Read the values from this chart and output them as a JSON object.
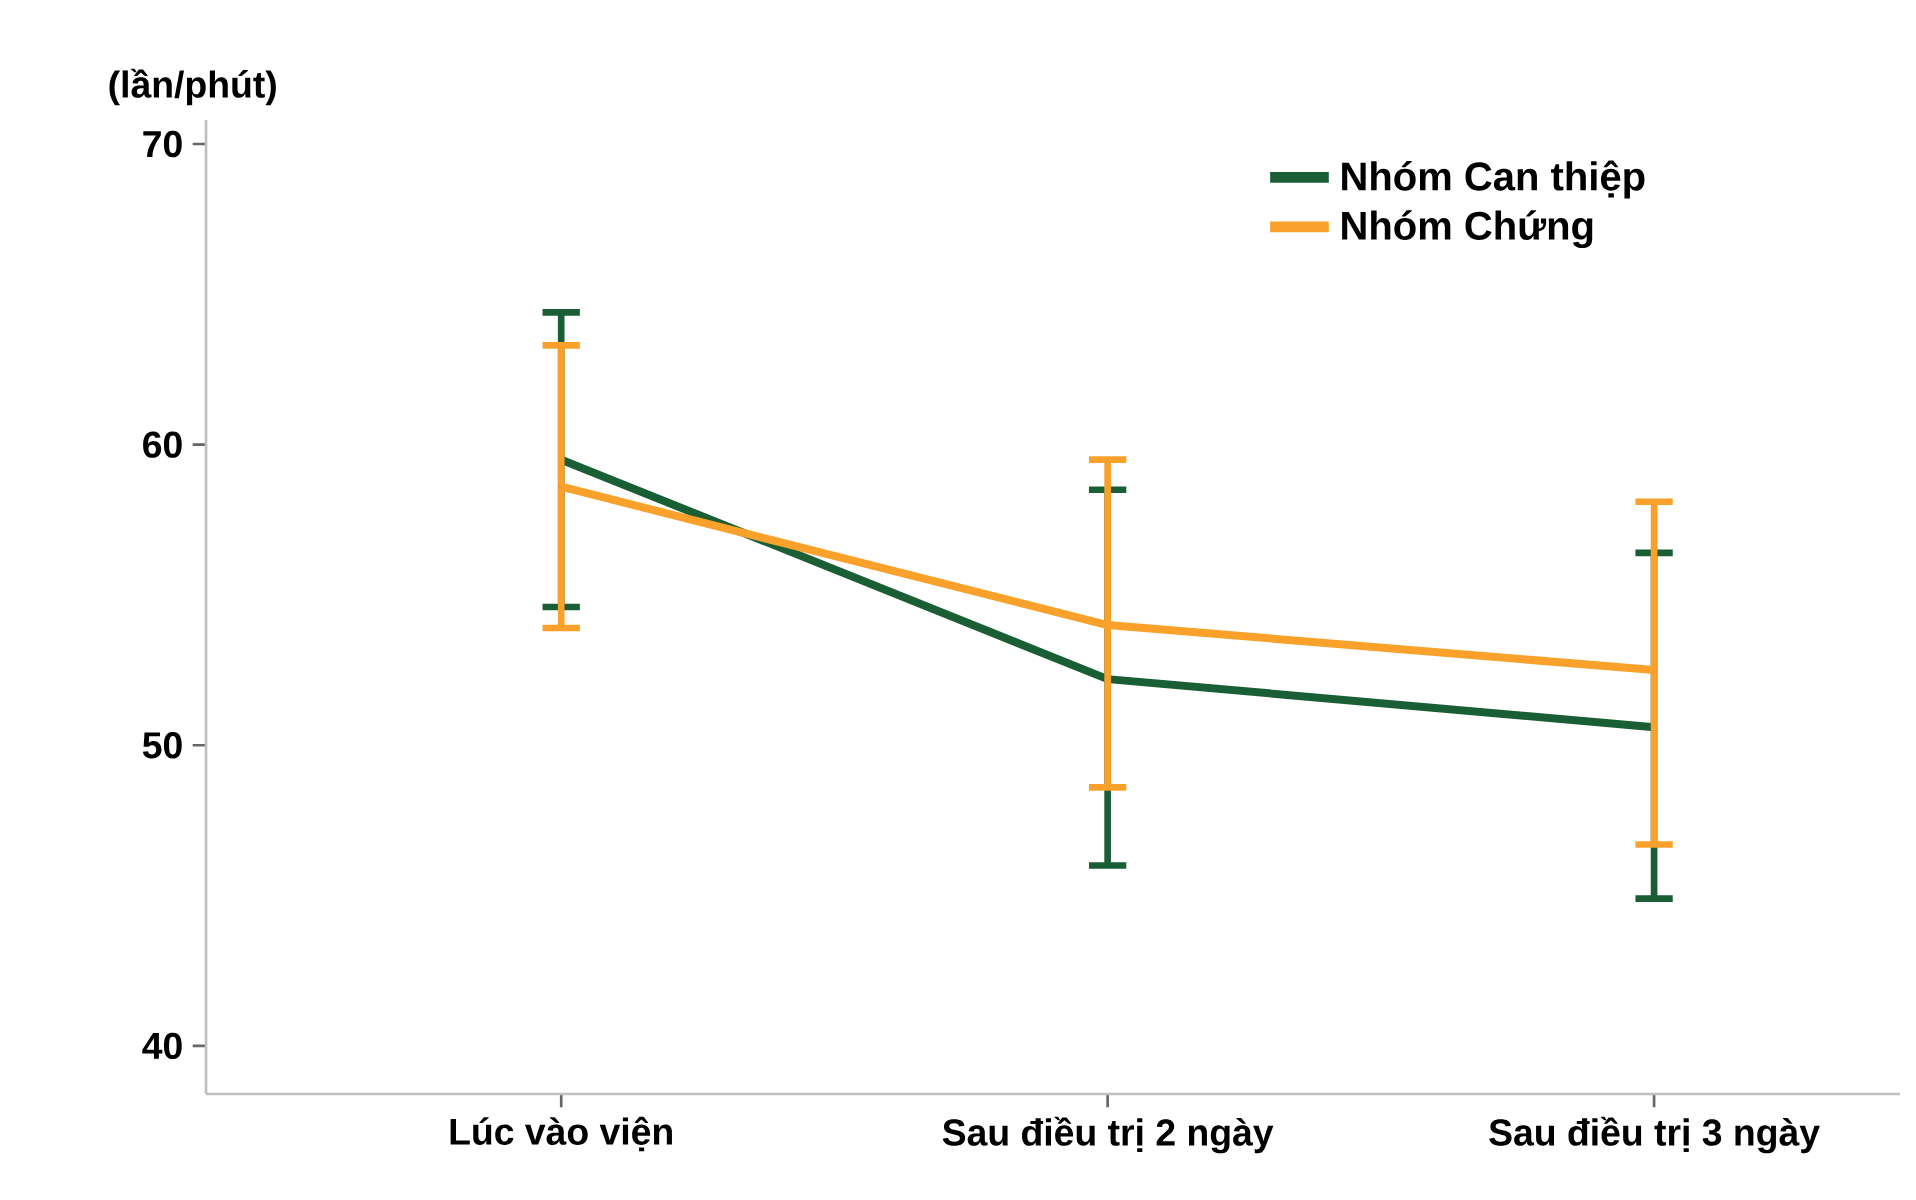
{
  "chart_data": {
    "type": "line",
    "ylabel": "(lần/phút)",
    "categories": [
      "Lúc vào viện",
      "Sau điều trị 2 ngày",
      "Sau điều trị 3 ngày"
    ],
    "series": [
      {
        "name": "Nhóm Can thiệp",
        "color": "#1a5e35",
        "values": [
          59.5,
          52.2,
          50.6
        ],
        "errors": [
          [
            54.6,
            64.4
          ],
          [
            46.0,
            58.5
          ],
          [
            44.9,
            56.4
          ]
        ]
      },
      {
        "name": "Nhóm Chứng",
        "color": "#f9a12a",
        "values": [
          58.6,
          54.0,
          52.5
        ],
        "errors": [
          [
            53.9,
            63.3
          ],
          [
            48.6,
            59.5
          ],
          [
            46.7,
            58.1
          ]
        ]
      }
    ],
    "ylim": [
      38.4,
      70.8
    ],
    "yticks": [
      40,
      50,
      60,
      70
    ],
    "grid": false,
    "legend": "top right",
    "marker": "none",
    "line_style": "solid"
  }
}
